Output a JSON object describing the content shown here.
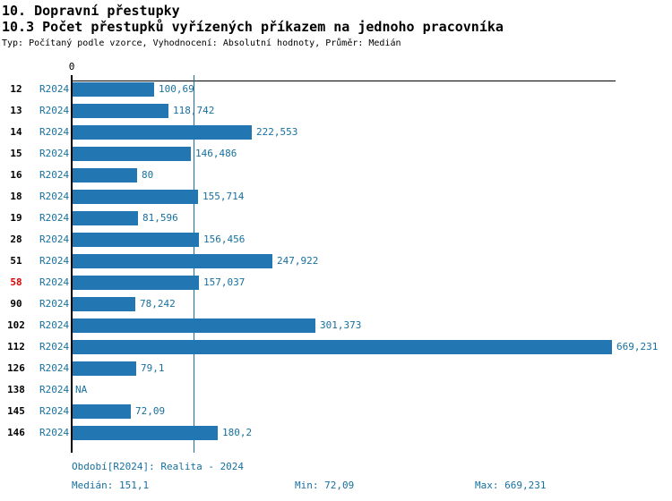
{
  "header": {
    "title": "10. Dopravní přestupky",
    "subtitle": "10.3 Počet přestupků vyřízených příkazem na jednoho pracovníka",
    "meta": "Typ: Počítaný podle vzorce, Vyhodnocení: Absolutní hodnoty, Průměr: Medián"
  },
  "chart_data": {
    "type": "bar",
    "orientation": "horizontal",
    "series_label": "R2024",
    "categories": [
      "12",
      "13",
      "14",
      "15",
      "16",
      "18",
      "19",
      "28",
      "51",
      "58",
      "90",
      "102",
      "112",
      "126",
      "138",
      "145",
      "146"
    ],
    "values": [
      100.69,
      118.742,
      222.553,
      146.486,
      80,
      155.714,
      81.596,
      156.456,
      247.922,
      157.037,
      78.242,
      301.373,
      669.231,
      79.1,
      null,
      72.09,
      180.2
    ],
    "value_labels": [
      "100,69",
      "118,742",
      "222,553",
      "146,486",
      "80",
      "155,714",
      "81,596",
      "156,456",
      "247,922",
      "157,037",
      "78,242",
      "301,373",
      "669,231",
      "79,1",
      "NA",
      "72,09",
      "180,2"
    ],
    "highlighted_category": "58",
    "x_zero_label": "0",
    "xlim": [
      0,
      669.231
    ],
    "median_value": 151.1,
    "grid": false,
    "legend_position": "none",
    "colors": {
      "bar": "#2277b2",
      "blue_text": "#17709f",
      "highlight_red": "#dd0000",
      "axis": "#000000"
    }
  },
  "footer": {
    "period": "Období[R2024]: Realita - 2024",
    "median": "Medián: 151,1",
    "min": "Min: 72,09",
    "max": "Max: 669,231"
  }
}
